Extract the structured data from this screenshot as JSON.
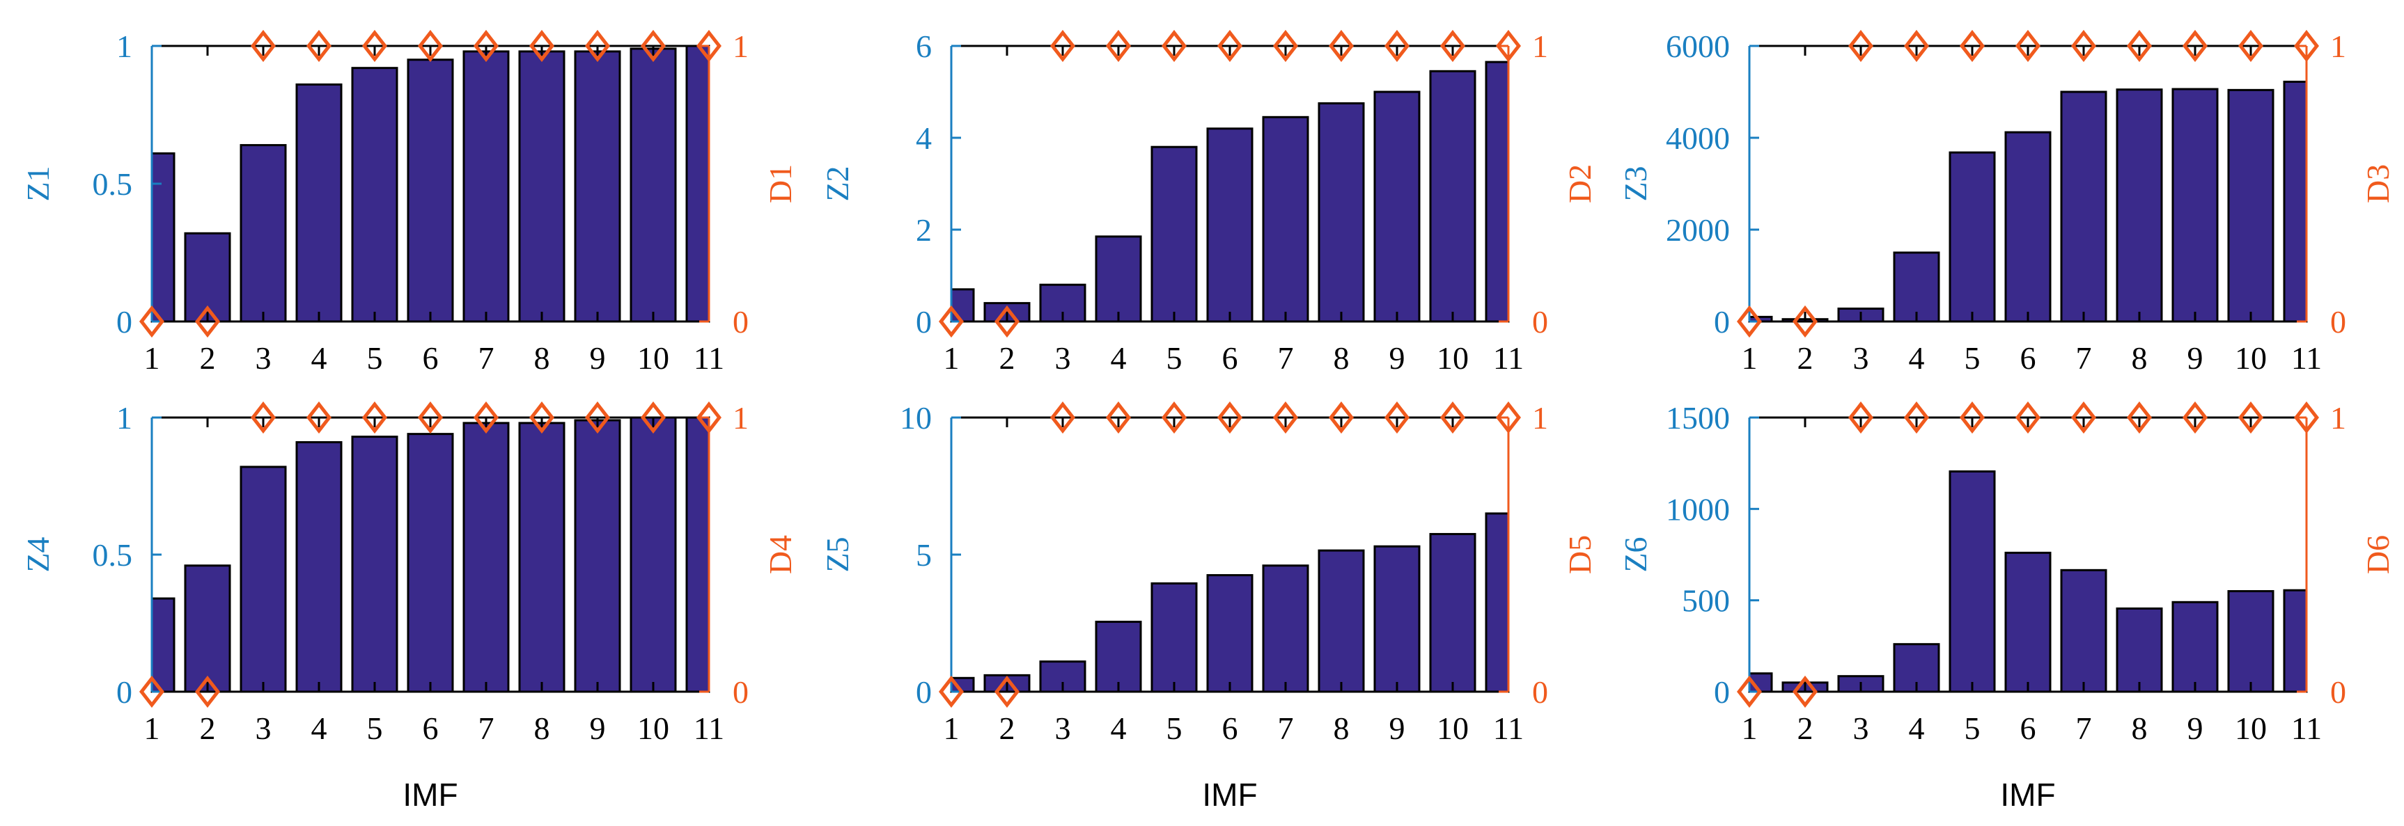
{
  "colors": {
    "bar": "#3a2a8b",
    "left_axis": "#1a7fc1",
    "right_axis": "#f05a1d",
    "frame": "#000000"
  },
  "chart_data": [
    {
      "type": "bar",
      "x": [
        1,
        2,
        3,
        4,
        5,
        6,
        7,
        8,
        9,
        10,
        11
      ],
      "xticks": [
        "1",
        "2",
        "3",
        "4",
        "5",
        "6",
        "7",
        "8",
        "9",
        "10",
        "11"
      ],
      "xlabel": "",
      "ylabel": "Z1",
      "ylim": [
        0,
        1
      ],
      "yticks": [
        "0",
        "0.5",
        "1"
      ],
      "values": [
        0.61,
        0.32,
        0.64,
        0.86,
        0.92,
        0.95,
        0.98,
        0.98,
        0.98,
        0.99,
        1.0
      ],
      "y2label": "D1",
      "y2lim": [
        0,
        1
      ],
      "y2ticks": [
        "0",
        "1"
      ],
      "y2values": [
        0,
        0,
        1,
        1,
        1,
        1,
        1,
        1,
        1,
        1,
        1
      ],
      "y2marker": "diamond"
    },
    {
      "type": "bar",
      "x": [
        1,
        2,
        3,
        4,
        5,
        6,
        7,
        8,
        9,
        10,
        11
      ],
      "xticks": [
        "1",
        "2",
        "3",
        "4",
        "5",
        "6",
        "7",
        "8",
        "9",
        "10",
        "11"
      ],
      "xlabel": "",
      "ylabel": "Z2",
      "ylim": [
        0,
        6
      ],
      "yticks": [
        "0",
        "2",
        "4",
        "6"
      ],
      "values": [
        0.7,
        0.4,
        0.8,
        1.85,
        3.8,
        4.2,
        4.45,
        4.75,
        5.0,
        5.45,
        5.65
      ],
      "y2label": "D2",
      "y2lim": [
        0,
        1
      ],
      "y2ticks": [
        "0",
        "1"
      ],
      "y2values": [
        0,
        0,
        1,
        1,
        1,
        1,
        1,
        1,
        1,
        1,
        1
      ],
      "y2marker": "diamond"
    },
    {
      "type": "bar",
      "x": [
        1,
        2,
        3,
        4,
        5,
        6,
        7,
        8,
        9,
        10,
        11
      ],
      "xticks": [
        "1",
        "2",
        "3",
        "4",
        "5",
        "6",
        "7",
        "8",
        "9",
        "10",
        "11"
      ],
      "xlabel": "",
      "ylabel": "Z3",
      "ylim": [
        0,
        6000
      ],
      "yticks": [
        "0",
        "2000",
        "4000",
        "6000"
      ],
      "values": [
        100,
        50,
        280,
        1500,
        3680,
        4120,
        5000,
        5050,
        5060,
        5040,
        5220
      ],
      "y2label": "D3",
      "y2lim": [
        0,
        1
      ],
      "y2ticks": [
        "0",
        "1"
      ],
      "y2values": [
        0,
        0,
        1,
        1,
        1,
        1,
        1,
        1,
        1,
        1,
        1
      ],
      "y2marker": "diamond"
    },
    {
      "type": "bar",
      "x": [
        1,
        2,
        3,
        4,
        5,
        6,
        7,
        8,
        9,
        10,
        11
      ],
      "xticks": [
        "1",
        "2",
        "3",
        "4",
        "5",
        "6",
        "7",
        "8",
        "9",
        "10",
        "11"
      ],
      "xlabel": "IMF",
      "ylabel": "Z4",
      "ylim": [
        0,
        1
      ],
      "yticks": [
        "0",
        "0.5",
        "1"
      ],
      "values": [
        0.34,
        0.46,
        0.82,
        0.91,
        0.93,
        0.94,
        0.98,
        0.98,
        0.99,
        1.0,
        1.0
      ],
      "y2label": "D4",
      "y2lim": [
        0,
        1
      ],
      "y2ticks": [
        "0",
        "1"
      ],
      "y2values": [
        0,
        0,
        1,
        1,
        1,
        1,
        1,
        1,
        1,
        1,
        1
      ],
      "y2marker": "diamond"
    },
    {
      "type": "bar",
      "x": [
        1,
        2,
        3,
        4,
        5,
        6,
        7,
        8,
        9,
        10,
        11
      ],
      "xticks": [
        "1",
        "2",
        "3",
        "4",
        "5",
        "6",
        "7",
        "8",
        "9",
        "10",
        "11"
      ],
      "xlabel": "IMF",
      "ylabel": "Z5",
      "ylim": [
        0,
        10
      ],
      "yticks": [
        "0",
        "5",
        "10"
      ],
      "values": [
        0.5,
        0.6,
        1.1,
        2.55,
        3.95,
        4.25,
        4.6,
        5.15,
        5.3,
        5.75,
        6.5
      ],
      "y2label": "D5",
      "y2lim": [
        0,
        1
      ],
      "y2ticks": [
        "0",
        "1"
      ],
      "y2values": [
        0,
        0,
        1,
        1,
        1,
        1,
        1,
        1,
        1,
        1,
        1
      ],
      "y2marker": "diamond"
    },
    {
      "type": "bar",
      "x": [
        1,
        2,
        3,
        4,
        5,
        6,
        7,
        8,
        9,
        10,
        11
      ],
      "xticks": [
        "1",
        "2",
        "3",
        "4",
        "5",
        "6",
        "7",
        "8",
        "9",
        "10",
        "11"
      ],
      "xlabel": "IMF",
      "ylabel": "Z6",
      "ylim": [
        0,
        1500
      ],
      "yticks": [
        "0",
        "500",
        "1000",
        "1500"
      ],
      "values": [
        100,
        50,
        85,
        260,
        1205,
        760,
        665,
        455,
        490,
        550,
        555
      ],
      "y2label": "D6",
      "y2lim": [
        0,
        1
      ],
      "y2ticks": [
        "0",
        "1"
      ],
      "y2values": [
        0,
        0,
        1,
        1,
        1,
        1,
        1,
        1,
        1,
        1,
        1
      ],
      "y2marker": "diamond"
    }
  ]
}
